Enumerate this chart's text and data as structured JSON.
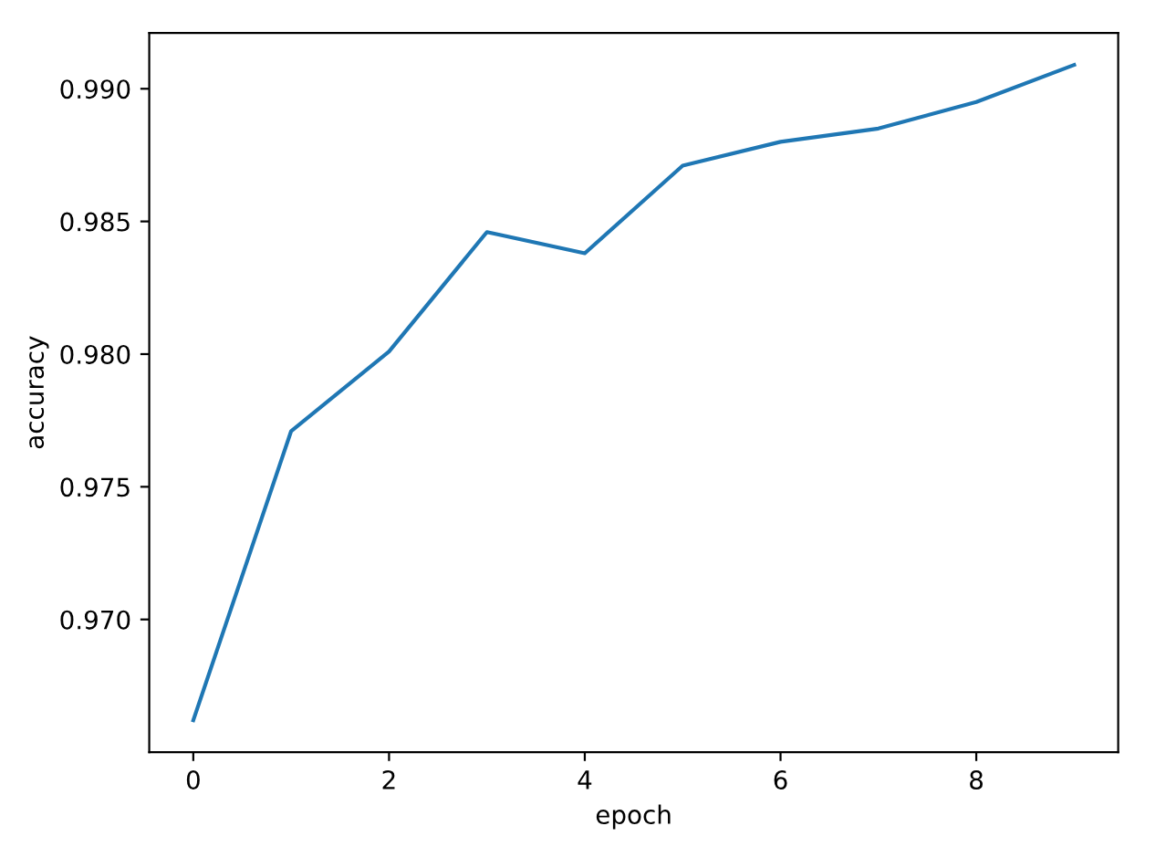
{
  "chart_data": {
    "type": "line",
    "xlabel": "epoch",
    "ylabel": "accuracy",
    "x": [
      0,
      1,
      2,
      3,
      4,
      5,
      6,
      7,
      8,
      9
    ],
    "series": [
      {
        "color": "#1f77b4",
        "values": [
          0.9662,
          0.9771,
          0.9801,
          0.9846,
          0.9838,
          0.9871,
          0.988,
          0.9885,
          0.9895,
          0.9909
        ]
      }
    ],
    "xlim": [
      -0.45,
      9.45
    ],
    "xticks": [
      0,
      2,
      4,
      6,
      8
    ],
    "ylim": [
      0.965,
      0.9921
    ],
    "yticks": [
      {
        "value": 0.97,
        "label": "0.970"
      },
      {
        "value": 0.975,
        "label": "0.975"
      },
      {
        "value": 0.98,
        "label": "0.980"
      },
      {
        "value": 0.985,
        "label": "0.985"
      },
      {
        "value": 0.99,
        "label": "0.990"
      }
    ],
    "marker": "none",
    "line_style": "solid"
  }
}
